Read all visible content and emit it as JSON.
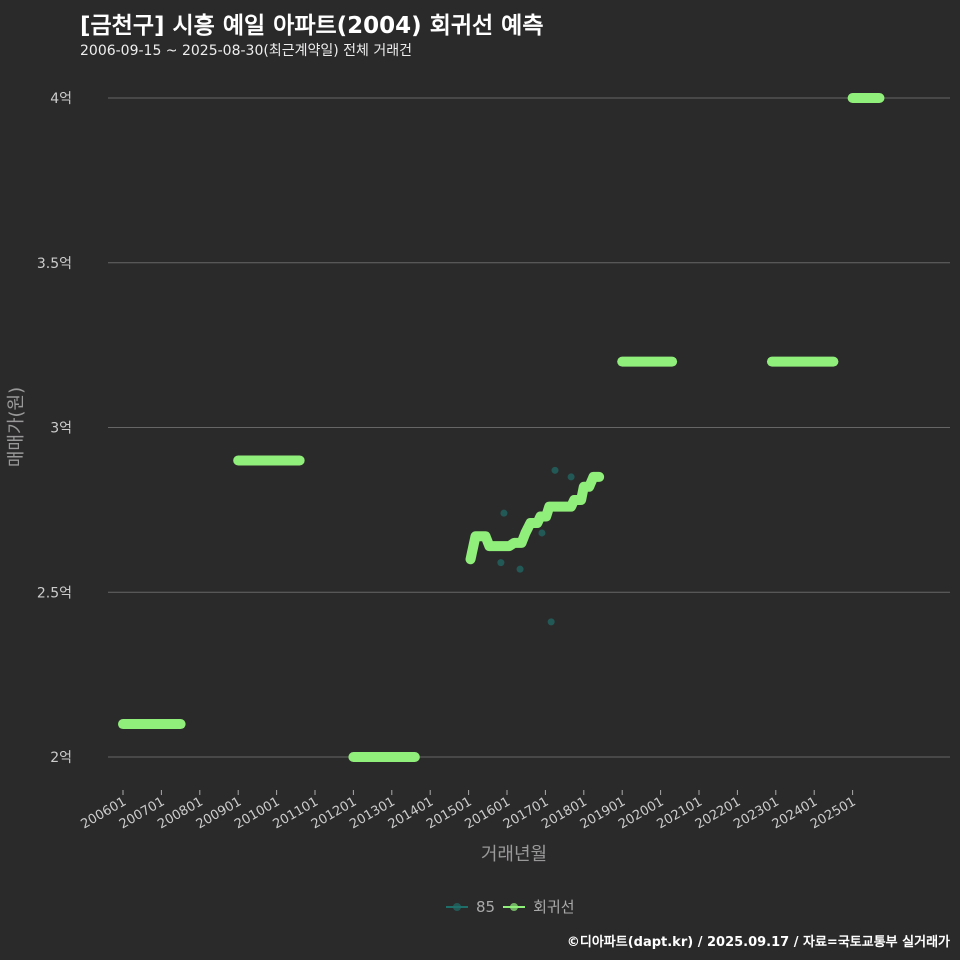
{
  "title": "[금천구] 시흥 예일 아파트(2004) 회귀선 예측",
  "subtitle": "2006-09-15 ~ 2025-08-30(최근계약일) 전체 거래건",
  "footer": "©디아파트(dapt.kr) / 2025.09.17 / 자료=국토교통부 실거래가",
  "colors": {
    "scatter": "#1f6e6a",
    "line": "#90ee7a",
    "grid": "#666666",
    "background": "#2b2a2b"
  },
  "chart_data": {
    "type": "line",
    "xlabel": "거래년월",
    "ylabel": "매매가(원)",
    "ylim": [
      1.9,
      4.1
    ],
    "xlim": [
      2005.4,
      2027.5
    ],
    "y_ticks": [
      {
        "v": 2,
        "label": "2억"
      },
      {
        "v": 2.5,
        "label": "2.5억"
      },
      {
        "v": 3,
        "label": "3억"
      },
      {
        "v": 3.5,
        "label": "3.5억"
      },
      {
        "v": 4,
        "label": "4억"
      }
    ],
    "x_ticks": [
      "200601",
      "200701",
      "200801",
      "200901",
      "201001",
      "201101",
      "201201",
      "201301",
      "201401",
      "201501",
      "201601",
      "201701",
      "201801",
      "201901",
      "202001",
      "202101",
      "202201",
      "202301",
      "202401",
      "202501"
    ],
    "legend": [
      {
        "name": "85",
        "color": "#1f6e6a"
      },
      {
        "name": "회귀선",
        "color": "#90ee7a"
      }
    ],
    "legend_position": "bottom",
    "scatter": {
      "name": "85",
      "x": [
        2015.84,
        2015.92,
        2016.34,
        2016.91,
        2017.15,
        2017.25,
        2017.45,
        2017.67
      ],
      "y": [
        2.59,
        2.74,
        2.57,
        2.68,
        2.41,
        2.87,
        2.76,
        2.85
      ]
    },
    "regression_segments": [
      {
        "x": [
          2006.0,
          2007.5
        ],
        "y": [
          2.1,
          2.1
        ]
      },
      {
        "x": [
          2009.0,
          2010.6
        ],
        "y": [
          2.9,
          2.9
        ]
      },
      {
        "x": [
          2012.0,
          2013.6
        ],
        "y": [
          2.0,
          2.0
        ]
      },
      {
        "x": [
          2015.05,
          2015.18,
          2015.44,
          2015.54,
          2016.06,
          2016.19,
          2016.38,
          2016.48,
          2016.61,
          2016.79,
          2016.87,
          2017.02,
          2017.1,
          2017.67,
          2017.75,
          2017.93,
          2018.0,
          2018.14,
          2018.25,
          2018.4
        ],
        "y": [
          2.6,
          2.67,
          2.67,
          2.64,
          2.64,
          2.65,
          2.65,
          2.68,
          2.71,
          2.71,
          2.73,
          2.73,
          2.76,
          2.76,
          2.78,
          2.78,
          2.82,
          2.82,
          2.85,
          2.85
        ]
      },
      {
        "x": [
          2019.0,
          2020.3
        ],
        "y": [
          3.2,
          3.2
        ]
      },
      {
        "x": [
          2022.9,
          2024.5
        ],
        "y": [
          3.2,
          3.2
        ]
      },
      {
        "x": [
          2025.0,
          2025.7
        ],
        "y": [
          4.0,
          4.0
        ]
      }
    ]
  }
}
